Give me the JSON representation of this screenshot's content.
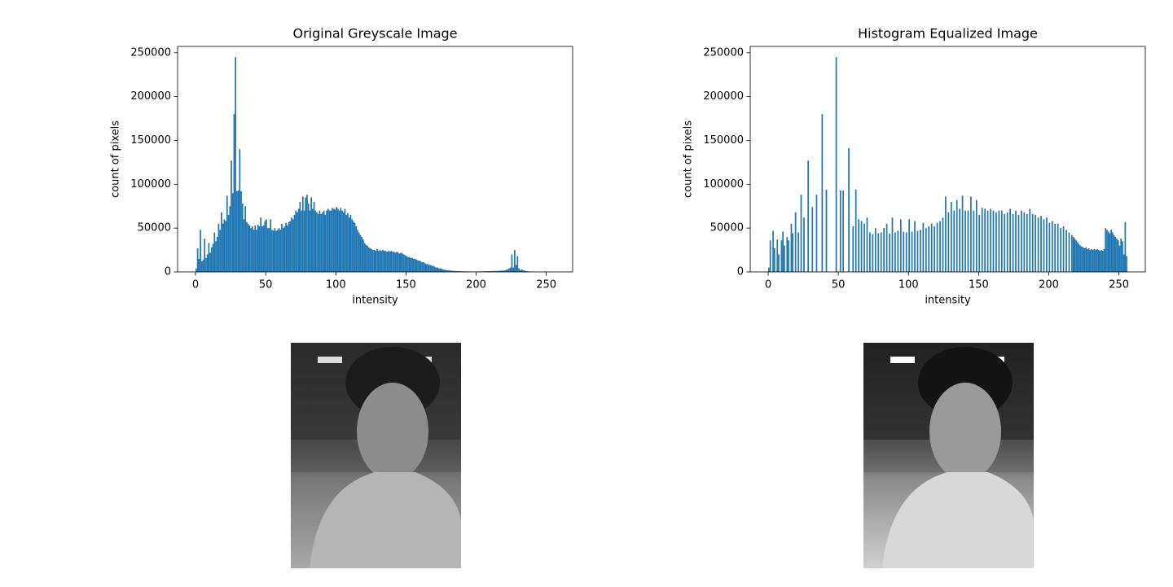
{
  "chart_data": [
    {
      "type": "histogram",
      "title": "Original Greyscale Image",
      "xlabel": "intensity",
      "ylabel": "count of pixels",
      "color": "#1f77b4",
      "xlim": [
        -12.8,
        268.8
      ],
      "ylim": [
        0,
        257250
      ],
      "xticks": [
        0,
        50,
        100,
        150,
        200,
        250
      ],
      "yticks": [
        0,
        50000,
        100000,
        150000,
        200000,
        250000
      ],
      "bins": [
        0,
        1,
        2,
        3,
        4,
        5,
        6,
        7,
        8,
        9,
        10,
        11,
        12,
        13,
        14,
        15,
        16,
        17,
        18,
        19,
        20,
        21,
        22,
        23,
        24,
        25,
        26,
        27,
        28,
        29,
        30,
        31,
        32,
        33,
        34,
        35,
        36,
        37,
        38,
        39,
        40,
        41,
        42,
        43,
        44,
        45,
        46,
        47,
        48,
        49,
        50,
        51,
        52,
        53,
        54,
        55,
        56,
        57,
        58,
        59,
        60,
        61,
        62,
        63,
        64,
        65,
        66,
        67,
        68,
        69,
        70,
        71,
        72,
        73,
        74,
        75,
        76,
        77,
        78,
        79,
        80,
        81,
        82,
        83,
        84,
        85,
        86,
        87,
        88,
        89,
        90,
        91,
        92,
        93,
        94,
        95,
        96,
        97,
        98,
        99,
        100,
        101,
        102,
        103,
        104,
        105,
        106,
        107,
        108,
        109,
        110,
        111,
        112,
        113,
        114,
        115,
        116,
        117,
        118,
        119,
        120,
        121,
        122,
        123,
        124,
        125,
        126,
        127,
        128,
        129,
        130,
        131,
        132,
        133,
        134,
        135,
        136,
        137,
        138,
        139,
        140,
        141,
        142,
        143,
        144,
        145,
        146,
        147,
        148,
        149,
        150,
        151,
        152,
        153,
        154,
        155,
        156,
        157,
        158,
        159,
        160,
        161,
        162,
        163,
        164,
        165,
        166,
        167,
        168,
        169,
        170,
        171,
        172,
        173,
        174,
        175,
        176,
        177,
        178,
        179,
        180,
        181,
        182,
        183,
        184,
        185,
        186,
        187,
        188,
        189,
        190,
        191,
        192,
        193,
        194,
        195,
        196,
        197,
        198,
        199,
        200,
        201,
        202,
        203,
        204,
        205,
        206,
        207,
        208,
        209,
        210,
        211,
        212,
        213,
        214,
        215,
        216,
        217,
        218,
        219,
        220,
        221,
        222,
        223,
        224,
        225,
        226,
        227,
        228,
        229,
        230,
        231,
        232,
        233,
        234,
        235,
        236,
        237,
        238,
        239,
        240,
        241,
        242,
        243,
        244,
        245,
        246,
        247,
        248,
        249,
        250,
        251,
        252,
        253,
        254,
        255,
        256
      ],
      "counts": [
        4000,
        27000,
        15000,
        48000,
        12000,
        14000,
        38000,
        16000,
        20000,
        33000,
        22000,
        28000,
        32000,
        45000,
        35000,
        40000,
        55000,
        48000,
        68000,
        55000,
        60000,
        58000,
        87000,
        65000,
        75000,
        127000,
        90000,
        180000,
        245000,
        92000,
        93000,
        140000,
        92000,
        78000,
        60000,
        75000,
        57000,
        55000,
        53000,
        50000,
        52000,
        48000,
        53000,
        48000,
        54000,
        52000,
        62000,
        52000,
        53000,
        58000,
        60000,
        50000,
        50000,
        60000,
        48000,
        47000,
        50000,
        47000,
        48000,
        50000,
        48000,
        55000,
        50000,
        52000,
        56000,
        53000,
        57000,
        58000,
        62000,
        60000,
        65000,
        70000,
        68000,
        72000,
        80000,
        70000,
        86000,
        70000,
        85000,
        88000,
        78000,
        70000,
        85000,
        72000,
        80000,
        70000,
        68000,
        66000,
        70000,
        66000,
        68000,
        70000,
        65000,
        70000,
        72000,
        70000,
        70000,
        73000,
        72000,
        71000,
        74000,
        72000,
        70000,
        73000,
        70000,
        68000,
        72000,
        65000,
        67000,
        62000,
        65000,
        60000,
        58000,
        56000,
        52000,
        48000,
        45000,
        42000,
        40000,
        37000,
        33000,
        31000,
        30000,
        28000,
        27000,
        26000,
        25000,
        25000,
        24000,
        26000,
        24000,
        25000,
        24000,
        25000,
        24000,
        24000,
        23000,
        24000,
        23000,
        24000,
        23000,
        23000,
        22000,
        23000,
        22000,
        21000,
        22000,
        21000,
        20000,
        19000,
        18000,
        17000,
        17000,
        16000,
        16000,
        15000,
        15000,
        14000,
        13000,
        13000,
        12000,
        11000,
        11000,
        10000,
        9000,
        9000,
        8000,
        8000,
        7000,
        7000,
        6000,
        5000,
        5000,
        4000,
        4000,
        3500,
        3000,
        2500,
        2200,
        2000,
        1800,
        1600,
        1400,
        1300,
        1200,
        1100,
        1000,
        900,
        900,
        800,
        800,
        700,
        700,
        600,
        600,
        600,
        500,
        500,
        500,
        500,
        500,
        500,
        600,
        600,
        700,
        700,
        800,
        800,
        900,
        900,
        1000,
        1000,
        1100,
        1100,
        1200,
        1200,
        1300,
        1400,
        1500,
        1600,
        1800,
        2500,
        3000,
        4000,
        5000,
        20000,
        5000,
        25000,
        8000,
        18000,
        4000,
        2000,
        3000,
        2000,
        1500,
        1000,
        800,
        600,
        500,
        400,
        300,
        300,
        200,
        200,
        200,
        100,
        100,
        100,
        100,
        100,
        100,
        100,
        100,
        100,
        100,
        100
      ]
    },
    {
      "type": "histogram",
      "title": "Histogram Equalized Image",
      "xlabel": "intensity",
      "ylabel": "count of pixels",
      "color": "#1f77b4",
      "xlim": [
        -12.8,
        268.8
      ],
      "ylim": [
        0,
        257250
      ],
      "xticks": [
        0,
        50,
        100,
        150,
        200,
        250
      ],
      "yticks": [
        0,
        50000,
        100000,
        150000,
        200000,
        250000
      ],
      "bins": [
        0,
        1,
        2,
        3,
        4,
        5,
        6,
        7,
        8,
        9,
        10,
        11,
        12,
        13,
        14,
        15,
        16,
        17,
        18,
        19,
        20,
        21,
        22,
        23,
        24,
        25,
        26,
        27,
        28,
        29,
        30,
        31,
        32,
        33,
        34,
        35,
        36,
        37,
        38,
        39,
        40,
        41,
        42,
        43,
        44,
        45,
        46,
        47,
        48,
        49,
        50,
        51,
        52,
        53,
        54,
        55,
        56,
        57,
        58,
        59,
        60,
        61,
        62,
        63,
        64,
        65,
        66,
        67,
        68,
        69,
        70,
        71,
        72,
        73,
        74,
        75,
        76,
        77,
        78,
        79,
        80,
        81,
        82,
        83,
        84,
        85,
        86,
        87,
        88,
        89,
        90,
        91,
        92,
        93,
        94,
        95,
        96,
        97,
        98,
        99,
        100,
        101,
        102,
        103,
        104,
        105,
        106,
        107,
        108,
        109,
        110,
        111,
        112,
        113,
        114,
        115,
        116,
        117,
        118,
        119,
        120,
        121,
        122,
        123,
        124,
        125,
        126,
        127,
        128,
        129,
        130,
        131,
        132,
        133,
        134,
        135,
        136,
        137,
        138,
        139,
        140,
        141,
        142,
        143,
        144,
        145,
        146,
        147,
        148,
        149,
        150,
        151,
        152,
        153,
        154,
        155,
        156,
        157,
        158,
        159,
        160,
        161,
        162,
        163,
        164,
        165,
        166,
        167,
        168,
        169,
        170,
        171,
        172,
        173,
        174,
        175,
        176,
        177,
        178,
        179,
        180,
        181,
        182,
        183,
        184,
        185,
        186,
        187,
        188,
        189,
        190,
        191,
        192,
        193,
        194,
        195,
        196,
        197,
        198,
        199,
        200,
        201,
        202,
        203,
        204,
        205,
        206,
        207,
        208,
        209,
        210,
        211,
        212,
        213,
        214,
        215,
        216,
        217,
        218,
        219,
        220,
        221,
        222,
        223,
        224,
        225,
        226,
        227,
        228,
        229,
        230,
        231,
        232,
        233,
        234,
        235,
        236,
        237,
        238,
        239,
        240,
        241,
        242,
        243,
        244,
        245,
        246,
        247,
        248,
        249,
        250,
        251,
        252,
        253,
        254,
        255,
        256
      ],
      "counts": [
        5000,
        36000,
        0,
        47000,
        27000,
        0,
        37000,
        20000,
        0,
        36000,
        46000,
        30000,
        0,
        40000,
        36000,
        0,
        55000,
        44000,
        0,
        68000,
        0,
        45000,
        0,
        88000,
        0,
        62000,
        0,
        0,
        127000,
        0,
        0,
        74000,
        0,
        0,
        88000,
        0,
        0,
        0,
        180000,
        0,
        0,
        94000,
        0,
        0,
        0,
        0,
        0,
        0,
        245000,
        0,
        0,
        93000,
        0,
        93000,
        0,
        0,
        0,
        141000,
        0,
        0,
        52000,
        0,
        94000,
        0,
        60000,
        0,
        58000,
        0,
        55000,
        0,
        62000,
        0,
        45000,
        0,
        43000,
        0,
        50000,
        0,
        44000,
        0,
        45000,
        0,
        50000,
        0,
        55000,
        0,
        44000,
        0,
        62000,
        0,
        45000,
        0,
        47000,
        0,
        60000,
        0,
        46000,
        0,
        45000,
        0,
        60000,
        0,
        46000,
        0,
        58000,
        0,
        47000,
        0,
        48000,
        0,
        56000,
        0,
        50000,
        0,
        52000,
        0,
        55000,
        0,
        52000,
        0,
        56000,
        0,
        58000,
        0,
        62000,
        0,
        86000,
        0,
        68000,
        0,
        80000,
        0,
        70000,
        0,
        82000,
        0,
        72000,
        0,
        87000,
        0,
        70000,
        0,
        70000,
        0,
        86000,
        0,
        70000,
        0,
        82000,
        0,
        65000,
        0,
        73000,
        0,
        72000,
        0,
        70000,
        0,
        72000,
        0,
        70000,
        0,
        68000,
        0,
        70000,
        0,
        70000,
        0,
        66000,
        0,
        68000,
        0,
        72000,
        0,
        66000,
        0,
        70000,
        0,
        65000,
        0,
        70000,
        0,
        68000,
        0,
        66000,
        0,
        72000,
        0,
        66000,
        0,
        65000,
        0,
        62000,
        0,
        64000,
        0,
        60000,
        0,
        62000,
        0,
        56000,
        0,
        58000,
        0,
        55000,
        0,
        55000,
        0,
        50000,
        0,
        52000,
        0,
        48000,
        0,
        45000,
        0,
        42000,
        40000,
        38000,
        36000,
        34000,
        32000,
        30000,
        29000,
        28000,
        27000,
        28000,
        26000,
        27000,
        25000,
        26000,
        25000,
        26000,
        25000,
        26000,
        25000,
        24000,
        25000,
        24000,
        26000,
        50000,
        48000,
        46000,
        44000,
        48000,
        45000,
        42000,
        40000,
        38000,
        36000,
        30000,
        38000,
        35000,
        20000,
        57000,
        18000
      ]
    }
  ]
}
